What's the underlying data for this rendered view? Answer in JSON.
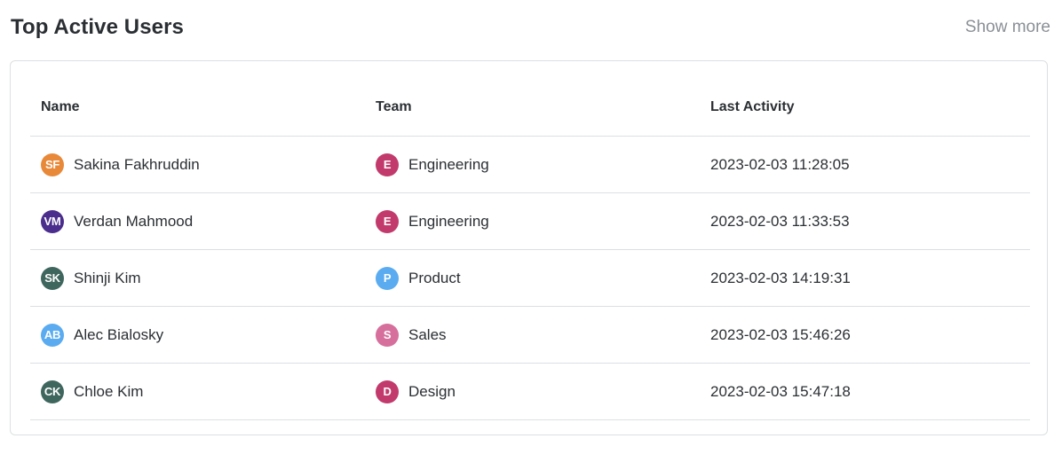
{
  "header": {
    "title": "Top Active Users",
    "show_more": "Show more"
  },
  "table": {
    "columns": [
      "Name",
      "Team",
      "Last Activity"
    ],
    "rows": [
      {
        "name": "Sakina Fakhruddin",
        "initials": "SF",
        "avatar_color": "#e8893a",
        "team": "Engineering",
        "team_initial": "E",
        "team_color": "#c23a6b",
        "last_activity": "2023-02-03 11:28:05"
      },
      {
        "name": "Verdan Mahmood",
        "initials": "VM",
        "avatar_color": "#4a2d8c",
        "team": "Engineering",
        "team_initial": "E",
        "team_color": "#c23a6b",
        "last_activity": "2023-02-03 11:33:53"
      },
      {
        "name": "Shinji Kim",
        "initials": "SK",
        "avatar_color": "#3f665d",
        "team": "Product",
        "team_initial": "P",
        "team_color": "#5aabf0",
        "last_activity": "2023-02-03 14:19:31"
      },
      {
        "name": "Alec Bialosky",
        "initials": "AB",
        "avatar_color": "#5aabf0",
        "team": "Sales",
        "team_initial": "S",
        "team_color": "#d66f9c",
        "last_activity": "2023-02-03 15:46:26"
      },
      {
        "name": "Chloe Kim",
        "initials": "CK",
        "avatar_color": "#3f665d",
        "team": "Design",
        "team_initial": "D",
        "team_color": "#c23a6b",
        "last_activity": "2023-02-03 15:47:18"
      }
    ]
  }
}
